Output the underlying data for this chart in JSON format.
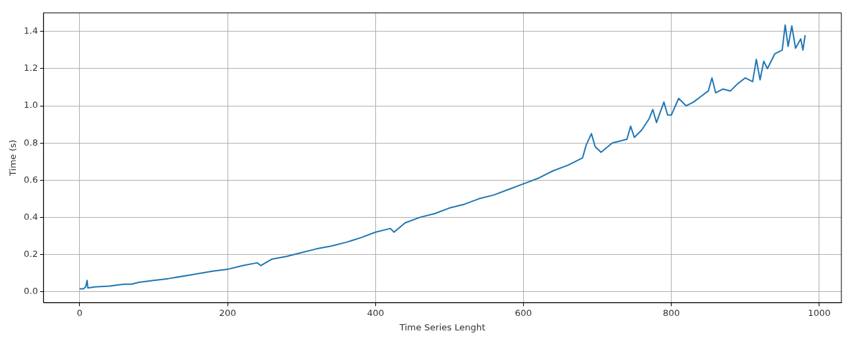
{
  "chart_data": {
    "type": "line",
    "xlabel": "Time Series Lenght",
    "ylabel": "Time (s)",
    "xlim": [
      -49,
      1030
    ],
    "ylim": [
      -0.06,
      1.5
    ],
    "xticks": [
      0,
      200,
      400,
      600,
      800,
      1000
    ],
    "yticks": [
      {
        "value": 0,
        "label": "0.0"
      },
      0.2,
      0.4,
      0.6,
      0.8,
      {
        "value": 1,
        "label": "1.0"
      },
      1.2,
      1.4
    ],
    "grid": true,
    "legend": false,
    "marker": "none",
    "line_style": "solid",
    "series": [
      {
        "color": "#1f77b4",
        "x": [
          0,
          5,
          8,
          10,
          11,
          20,
          40,
          60,
          70,
          80,
          100,
          120,
          150,
          180,
          200,
          220,
          240,
          245,
          260,
          280,
          300,
          320,
          340,
          360,
          380,
          400,
          420,
          425,
          440,
          460,
          480,
          500,
          520,
          540,
          560,
          580,
          600,
          620,
          640,
          660,
          680,
          685,
          692,
          697,
          705,
          720,
          740,
          745,
          750,
          760,
          770,
          775,
          780,
          790,
          795,
          800,
          810,
          820,
          830,
          840,
          850,
          855,
          860,
          870,
          880,
          890,
          900,
          910,
          915,
          920,
          925,
          930,
          940,
          950,
          954,
          958,
          963,
          968,
          975,
          978,
          981
        ],
        "values": [
          0.015,
          0.015,
          0.025,
          0.06,
          0.02,
          0.025,
          0.03,
          0.04,
          0.04,
          0.05,
          0.06,
          0.07,
          0.09,
          0.11,
          0.12,
          0.14,
          0.155,
          0.14,
          0.175,
          0.19,
          0.21,
          0.23,
          0.245,
          0.265,
          0.29,
          0.32,
          0.34,
          0.32,
          0.37,
          0.4,
          0.42,
          0.45,
          0.47,
          0.5,
          0.52,
          0.55,
          0.58,
          0.61,
          0.65,
          0.68,
          0.72,
          0.79,
          0.85,
          0.78,
          0.75,
          0.8,
          0.82,
          0.89,
          0.83,
          0.87,
          0.93,
          0.98,
          0.91,
          1.02,
          0.95,
          0.95,
          1.04,
          1.0,
          1.02,
          1.05,
          1.08,
          1.15,
          1.07,
          1.09,
          1.08,
          1.12,
          1.15,
          1.13,
          1.25,
          1.14,
          1.24,
          1.2,
          1.28,
          1.3,
          1.435,
          1.32,
          1.43,
          1.31,
          1.36,
          1.3,
          1.38
        ]
      }
    ]
  }
}
